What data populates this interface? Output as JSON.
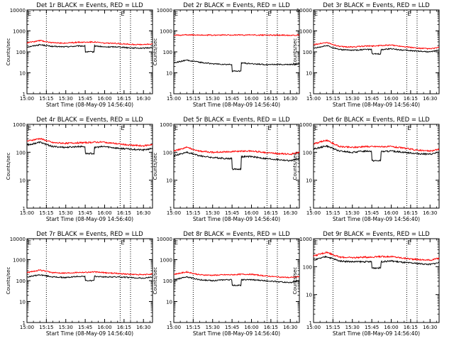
{
  "x_ticks": [
    "15:00",
    "15:15",
    "15:30",
    "15:45",
    "16:00",
    "16:15",
    "16:30"
  ],
  "x_tick_minutes": [
    0,
    15,
    30,
    45,
    60,
    75,
    90
  ],
  "x_minor_minutes": [
    5,
    10,
    20,
    25,
    35,
    40,
    50,
    55,
    65,
    70,
    80,
    85,
    95
  ],
  "x_range_minutes": [
    0,
    97
  ],
  "vlines_minutes": [
    15,
    72,
    80
  ],
  "corner_marker": "E",
  "xlabel": "Start Time (08-May-09 14:56:40)",
  "ylabel": "Counts/sec",
  "colors": {
    "events": "#000000",
    "lld": "#ff0000",
    "axis": "#000000"
  },
  "chart_data": [
    {
      "type": "line",
      "title": "Det 1r BLACK = Events, RED = LLD",
      "yscale": "log",
      "ylim": [
        1,
        10000
      ],
      "ytick_labels": [
        "1",
        "10",
        "100",
        "1000",
        "10000"
      ],
      "x_minutes": [
        0,
        10,
        20,
        30,
        40,
        45,
        52,
        60,
        70,
        80,
        90,
        97
      ],
      "series": [
        {
          "name": "Events",
          "values": [
            170,
            220,
            180,
            175,
            190,
            100,
            195,
            170,
            175,
            155,
            150,
            160
          ]
        },
        {
          "name": "LLD",
          "values": [
            270,
            350,
            270,
            260,
            290,
            290,
            300,
            260,
            250,
            230,
            220,
            240
          ]
        }
      ]
    },
    {
      "type": "line",
      "title": "Det 2r BLACK = Events, RED = LLD",
      "yscale": "log",
      "ylim": [
        1,
        10000
      ],
      "ytick_labels": [
        "1",
        "10",
        "100",
        "1000",
        "10000"
      ],
      "x_minutes": [
        0,
        10,
        20,
        30,
        40,
        45,
        52,
        60,
        70,
        80,
        90,
        97
      ],
      "series": [
        {
          "name": "Events",
          "values": [
            30,
            40,
            32,
            27,
            25,
            12,
            30,
            27,
            25,
            25,
            25,
            27
          ]
        },
        {
          "name": "LLD",
          "values": [
            620,
            650,
            640,
            630,
            640,
            640,
            640,
            640,
            630,
            630,
            620,
            640
          ]
        }
      ]
    },
    {
      "type": "line",
      "title": "Det 3r BLACK = Events, RED = LLD",
      "yscale": "log",
      "ylim": [
        1,
        10000
      ],
      "ytick_labels": [
        "1",
        "10",
        "100",
        "1000",
        "10000"
      ],
      "x_minutes": [
        0,
        10,
        20,
        30,
        40,
        45,
        52,
        60,
        70,
        80,
        90,
        97
      ],
      "series": [
        {
          "name": "Events",
          "values": [
            150,
            200,
            130,
            120,
            130,
            80,
            130,
            140,
            120,
            110,
            100,
            120
          ]
        },
        {
          "name": "LLD",
          "values": [
            220,
            280,
            180,
            170,
            190,
            190,
            200,
            210,
            180,
            150,
            140,
            160
          ]
        }
      ]
    },
    {
      "type": "line",
      "title": "Det 4r BLACK = Events, RED = LLD",
      "yscale": "log",
      "ylim": [
        1,
        1000
      ],
      "ytick_labels": [
        "1",
        "10",
        "100",
        "1000"
      ],
      "x_minutes": [
        0,
        10,
        20,
        30,
        40,
        45,
        52,
        60,
        70,
        80,
        90,
        97
      ],
      "series": [
        {
          "name": "Events",
          "values": [
            180,
            230,
            160,
            150,
            160,
            90,
            150,
            160,
            140,
            130,
            120,
            140
          ]
        },
        {
          "name": "LLD",
          "values": [
            250,
            310,
            220,
            210,
            220,
            220,
            230,
            230,
            200,
            180,
            170,
            190
          ]
        }
      ]
    },
    {
      "type": "line",
      "title": "Det 5r BLACK = Events, RED = LLD",
      "yscale": "log",
      "ylim": [
        1,
        1000
      ],
      "ytick_labels": [
        "1",
        "10",
        "100",
        "1000"
      ],
      "x_minutes": [
        0,
        10,
        20,
        30,
        40,
        45,
        52,
        60,
        70,
        80,
        90,
        97
      ],
      "series": [
        {
          "name": "Events",
          "values": [
            75,
            100,
            75,
            65,
            60,
            25,
            70,
            70,
            60,
            55,
            50,
            60
          ]
        },
        {
          "name": "LLD",
          "values": [
            110,
            150,
            110,
            100,
            105,
            105,
            110,
            110,
            100,
            90,
            85,
            100
          ]
        }
      ]
    },
    {
      "type": "line",
      "title": "Det 6r BLACK = Events, RED = LLD",
      "yscale": "log",
      "ylim": [
        1,
        1000
      ],
      "ytick_labels": [
        "1",
        "10",
        "100",
        "1000"
      ],
      "x_minutes": [
        0,
        10,
        20,
        30,
        40,
        45,
        52,
        60,
        70,
        80,
        90,
        97
      ],
      "series": [
        {
          "name": "Events",
          "values": [
            130,
            170,
            110,
            100,
            110,
            50,
            105,
            110,
            100,
            90,
            85,
            100
          ]
        },
        {
          "name": "LLD",
          "values": [
            200,
            270,
            160,
            150,
            160,
            160,
            160,
            160,
            140,
            120,
            110,
            130
          ]
        }
      ]
    },
    {
      "type": "line",
      "title": "Det 7r BLACK = Events, RED = LLD",
      "yscale": "log",
      "ylim": [
        1,
        10000
      ],
      "ytick_labels": [
        "1",
        "10",
        "100",
        "1000",
        "10000"
      ],
      "x_minutes": [
        0,
        10,
        20,
        30,
        40,
        45,
        52,
        60,
        70,
        80,
        90,
        97
      ],
      "series": [
        {
          "name": "Events",
          "values": [
            150,
            190,
            150,
            140,
            160,
            100,
            160,
            150,
            150,
            140,
            130,
            150
          ]
        },
        {
          "name": "LLD",
          "values": [
            240,
            320,
            240,
            230,
            250,
            250,
            260,
            240,
            220,
            200,
            190,
            210
          ]
        }
      ]
    },
    {
      "type": "line",
      "title": "Det 8r BLACK = Events, RED = LLD",
      "yscale": "log",
      "ylim": [
        1,
        10000
      ],
      "ytick_labels": [
        "1",
        "10",
        "100",
        "1000",
        "10000"
      ],
      "x_minutes": [
        0,
        10,
        20,
        30,
        40,
        45,
        52,
        60,
        70,
        80,
        90,
        97
      ],
      "series": [
        {
          "name": "Events",
          "values": [
            110,
            150,
            110,
            100,
            110,
            60,
            110,
            110,
            100,
            90,
            80,
            100
          ]
        },
        {
          "name": "LLD",
          "values": [
            200,
            260,
            190,
            180,
            190,
            190,
            200,
            200,
            170,
            150,
            140,
            160
          ]
        }
      ]
    },
    {
      "type": "line",
      "title": "Det 9r BLACK = Events, RED = LLD",
      "yscale": "log",
      "ylim": [
        1,
        1000
      ],
      "ytick_labels": [
        "1",
        "10",
        "100",
        "1000"
      ],
      "x_minutes": [
        0,
        10,
        20,
        30,
        40,
        45,
        52,
        60,
        70,
        80,
        90,
        97
      ],
      "series": [
        {
          "name": "Events",
          "values": [
            170,
            230,
            160,
            150,
            150,
            90,
            150,
            160,
            140,
            130,
            120,
            140
          ]
        },
        {
          "name": "LLD",
          "values": [
            240,
            330,
            220,
            210,
            220,
            220,
            230,
            230,
            200,
            180,
            170,
            200
          ]
        }
      ]
    }
  ]
}
